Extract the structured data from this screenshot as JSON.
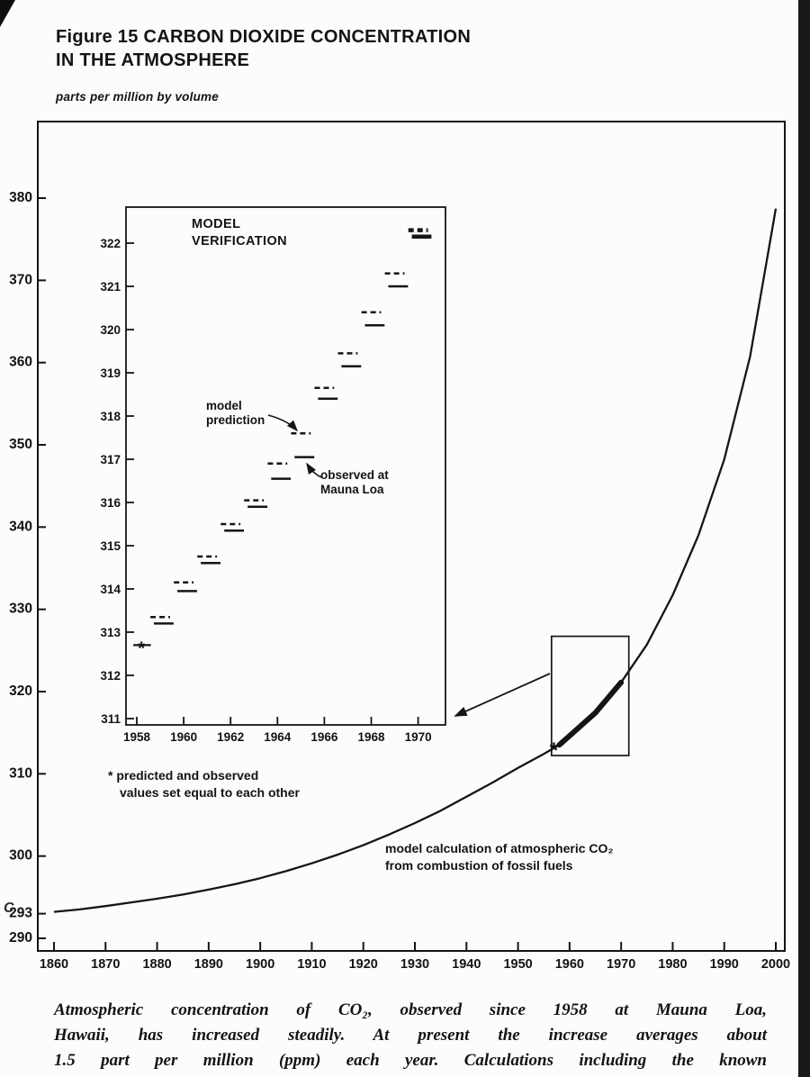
{
  "page": {
    "figure_title_line1": "Figure 15 CARBON DIOXIDE CONCENTRATION",
    "figure_title_line2": "IN THE ATMOSPHERE",
    "units_label": "parts per million by volume",
    "caption_lines": [
      "Atmospheric concentration of CO₂, observed since 1958 at Mauna Loa,",
      "Hawaii, has increased steadily. At present the increase averages about",
      "1.5 part per million (ppm) each year. Calculations including the known"
    ],
    "margin_artifact": "C"
  },
  "chart_data": [
    {
      "id": "main-projection",
      "type": "line",
      "title": "Figure 15 CARBON DIOXIDE CONCENTRATION IN THE ATMOSPHERE",
      "ylabel": "parts per million by volume",
      "xlim": [
        1860,
        2000
      ],
      "ylim": [
        290,
        382
      ],
      "grid": false,
      "x_ticks": [
        1860,
        1870,
        1880,
        1890,
        1900,
        1910,
        1920,
        1930,
        1940,
        1950,
        1960,
        1970,
        1980,
        1990,
        2000
      ],
      "y_ticks": [
        290,
        293,
        300,
        310,
        320,
        330,
        340,
        350,
        360,
        370,
        380
      ],
      "series": [
        {
          "name": "model calculation of atmospheric CO₂ from combustion of fossil fuels",
          "style": "solid",
          "points": [
            [
              1860,
              293
            ],
            [
              1865,
              293.3
            ],
            [
              1870,
              293.7
            ],
            [
              1875,
              294.15
            ],
            [
              1880,
              294.6
            ],
            [
              1885,
              295.1
            ],
            [
              1890,
              295.7
            ],
            [
              1895,
              296.35
            ],
            [
              1900,
              297.1
            ],
            [
              1905,
              297.95
            ],
            [
              1910,
              298.9
            ],
            [
              1915,
              299.95
            ],
            [
              1920,
              301.1
            ],
            [
              1925,
              302.4
            ],
            [
              1930,
              303.8
            ],
            [
              1935,
              305.3
            ],
            [
              1940,
              307
            ],
            [
              1945,
              308.7
            ],
            [
              1950,
              310.5
            ],
            [
              1955,
              312.2
            ],
            [
              1958,
              313.3
            ],
            [
              1960,
              314.4
            ],
            [
              1965,
              317.2
            ],
            [
              1970,
              320.9
            ],
            [
              1975,
              325.5
            ],
            [
              1980,
              331.5
            ],
            [
              1985,
              338.8
            ],
            [
              1990,
              348
            ],
            [
              1995,
              360.5
            ],
            [
              2000,
              378.5
            ]
          ]
        }
      ],
      "observed_overlay_years": [
        1958,
        1970
      ],
      "asterisk_point": [
        1958,
        313.1
      ],
      "highlight_box": {
        "x0": 1956.5,
        "x1": 1971.5,
        "y0": 312,
        "y1": 326.5
      },
      "annotation_line1": "model calculation of atmospheric CO₂",
      "annotation_line2": "from combustion of fossil fuels"
    },
    {
      "id": "inset-model-verification",
      "type": "line",
      "title_line1": "MODEL",
      "title_line2": "VERIFICATION",
      "xlim": [
        1957.6,
        1971.2
      ],
      "ylim": [
        311,
        322.6
      ],
      "grid": false,
      "x_ticks": [
        1958,
        1960,
        1962,
        1964,
        1966,
        1968,
        1970
      ],
      "y_ticks": [
        311,
        312,
        313,
        314,
        315,
        316,
        317,
        318,
        319,
        320,
        321,
        322
      ],
      "series": [
        {
          "name": "model prediction",
          "style": "dashed",
          "segments": [
            [
              1959,
              313.35
            ],
            [
              1960,
              314.15
            ],
            [
              1961,
              314.75
            ],
            [
              1962,
              315.5
            ],
            [
              1963,
              316.05
            ],
            [
              1964,
              316.9
            ],
            [
              1965,
              317.6
            ],
            [
              1966,
              318.65
            ],
            [
              1967,
              319.45
            ],
            [
              1968,
              320.4
            ],
            [
              1969,
              321.3
            ],
            [
              1970,
              322.3
            ]
          ]
        },
        {
          "name": "observed at Mauna Loa",
          "style": "solid",
          "segments": [
            [
              1959,
              313.2
            ],
            [
              1960,
              313.95
            ],
            [
              1961,
              314.6
            ],
            [
              1962,
              315.35
            ],
            [
              1963,
              315.9
            ],
            [
              1964,
              316.55
            ],
            [
              1965,
              317.05
            ],
            [
              1966,
              318.4
            ],
            [
              1967,
              319.15
            ],
            [
              1968,
              320.1
            ],
            [
              1969,
              321.0
            ],
            [
              1970,
              322.15
            ]
          ]
        }
      ],
      "equal_start_point": [
        1958.2,
        312.7
      ],
      "label_model_line1": "model",
      "label_model_line2": "prediction",
      "label_observed_line1": "observed at",
      "label_observed_line2": "Mauna Loa",
      "footnote_line1": "* predicted and observed",
      "footnote_line2": "values set equal to each other"
    }
  ]
}
